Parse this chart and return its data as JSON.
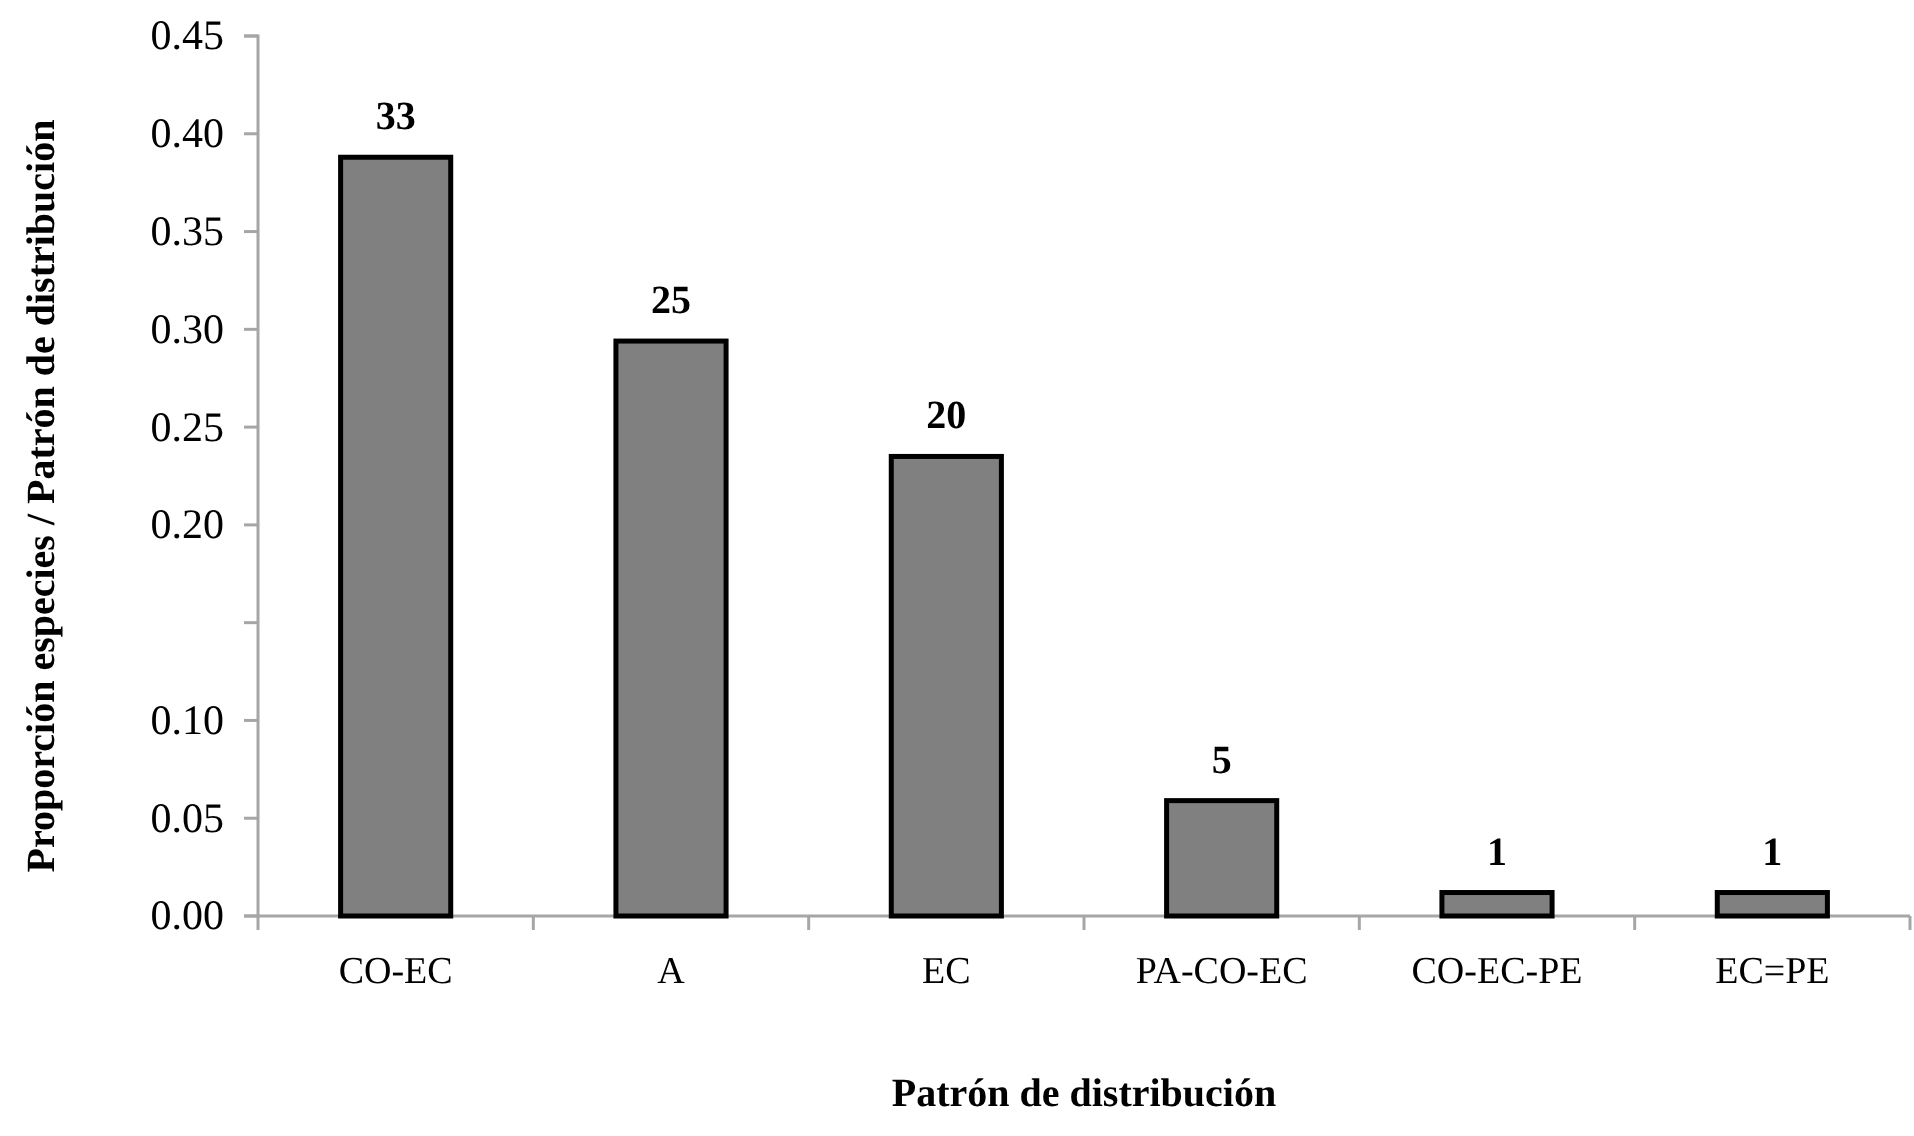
{
  "chart_data": {
    "type": "bar",
    "xlabel": "Patrón de distribución",
    "ylabel": "Proporción especies / Patrón de distribución",
    "categories": [
      "CO-EC",
      "A",
      "EC",
      "PA-CO-EC",
      "CO-EC-PE",
      "EC=PE"
    ],
    "values": [
      0.388,
      0.294,
      0.235,
      0.059,
      0.012,
      0.012
    ],
    "annotations": [
      {
        "text": "33",
        "x": "CO-EC",
        "y": 0.388
      },
      {
        "text": "25",
        "x": "A",
        "y": 0.294
      },
      {
        "text": "20",
        "x": "EC",
        "y": 0.235
      },
      {
        "text": "5",
        "x": "PA-CO-EC",
        "y": 0.059
      },
      {
        "text": "1",
        "x": "CO-EC-PE",
        "y": 0.012
      },
      {
        "text": "1",
        "x": "EC=PE",
        "y": 0.012
      }
    ],
    "color": "#808080",
    "ylim": [
      0,
      0.45
    ],
    "yticks": [
      {
        "value": 0,
        "label": "0.00"
      },
      {
        "value": 0.05,
        "label": "0.05"
      },
      {
        "value": 0.1,
        "label": "0.10"
      },
      {
        "value": 0.15,
        "label": null
      },
      {
        "value": 0.2,
        "label": "0.20"
      },
      {
        "value": 0.25,
        "label": "0.25"
      },
      {
        "value": 0.3,
        "label": "0.30"
      },
      {
        "value": 0.35,
        "label": "0.35"
      },
      {
        "value": 0.4,
        "label": "0.40"
      },
      {
        "value": 0.45,
        "label": "0.45"
      }
    ],
    "grid": false
  }
}
